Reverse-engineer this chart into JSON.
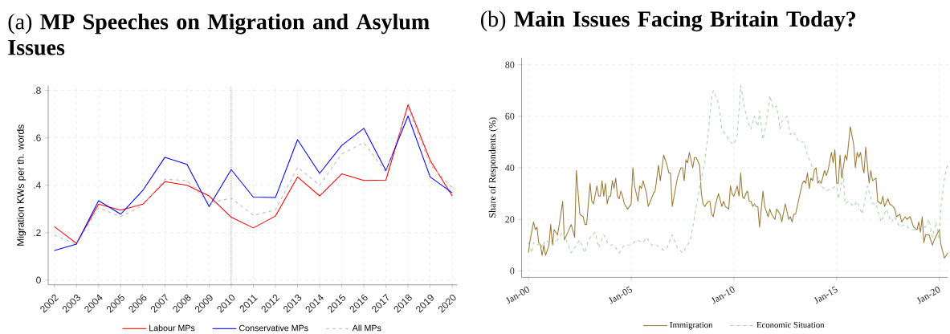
{
  "chart_data": [
    {
      "type": "line",
      "title": "(a) **MP Speeches on Migration and Asylum Issues**",
      "ylabel": "Migration KWs per th. words",
      "x": [
        2002,
        2003,
        2004,
        2005,
        2006,
        2007,
        2008,
        2009,
        2010,
        2011,
        2012,
        2013,
        2014,
        2015,
        2016,
        2017,
        2018,
        2019,
        2020
      ],
      "series": [
        {
          "name": "Labour MPs",
          "color": "#ff0000",
          "line_style": "solid",
          "values": [
            0.225,
            0.155,
            0.32,
            0.295,
            0.32,
            0.415,
            0.4,
            0.355,
            0.265,
            0.22,
            0.27,
            0.435,
            0.355,
            0.448,
            0.42,
            0.422,
            0.74,
            0.505,
            0.355
          ]
        },
        {
          "name": "Conservative MPs",
          "color": "#0000ff",
          "line_style": "solid",
          "values": [
            0.125,
            0.152,
            0.335,
            0.278,
            0.378,
            0.518,
            0.488,
            0.31,
            0.466,
            0.35,
            0.348,
            0.592,
            0.45,
            0.568,
            0.64,
            0.462,
            0.692,
            0.435,
            0.368
          ]
        },
        {
          "name": "All MPs",
          "color": "#bdbdbd",
          "line_style": "dashed",
          "values": [
            0.19,
            0.15,
            0.305,
            0.268,
            0.315,
            0.425,
            0.42,
            0.325,
            0.346,
            0.273,
            0.295,
            0.476,
            0.4,
            0.532,
            0.58,
            0.455,
            0.725,
            0.487,
            0.39
          ]
        }
      ],
      "xlim": [
        2001.72,
        2020.23
      ],
      "xticks": [
        2002,
        2003,
        2004,
        2005,
        2006,
        2007,
        2008,
        2009,
        2010,
        2011,
        2012,
        2013,
        2014,
        2015,
        2016,
        2017,
        2018,
        2019,
        2020
      ],
      "ylim": [
        -0.02,
        0.82
      ],
      "yticks": [
        {
          "value": 0,
          "label": "0"
        },
        {
          "value": 0.2,
          "label": ".2"
        },
        {
          "value": 0.4,
          "label": ".4"
        },
        {
          "value": 0.6,
          "label": ".6"
        },
        {
          "value": 0.8,
          "label": ".8"
        }
      ],
      "ref_lines": [
        {
          "axis": "x",
          "value": 2010,
          "color": "#555555",
          "line_style": "dotted"
        }
      ],
      "grid": true,
      "legend": "bottom"
    },
    {
      "type": "line",
      "title": "(b) **Main Issues Facing Britain Today?**",
      "ylabel": "Share of Respondents (%)",
      "series": [
        {
          "name": "Immigration",
          "color": "#9a7b3a",
          "line_style": "solid",
          "x": [
            "2000-01",
            "2000-02",
            "2000-04",
            "2000-05",
            "2000-06",
            "2000-07",
            "2000-08",
            "2000-09",
            "2000-10",
            "2000-11",
            "2001-01",
            "2001-02",
            "2001-03",
            "2001-04",
            "2001-06",
            "2001-07",
            "2001-09",
            "2001-10",
            "2002-02",
            "2002-04",
            "2002-05",
            "2002-07",
            "2002-09",
            "2002-10",
            "2002-11",
            "2003-01",
            "2003-02",
            "2003-03",
            "2003-05",
            "2003-06",
            "2003-07",
            "2003-08",
            "2003-09",
            "2003-10",
            "2003-11",
            "2003-12",
            "2004-01",
            "2004-02",
            "2004-03",
            "2004-04",
            "2004-05",
            "2004-06",
            "2004-07",
            "2004-08",
            "2004-09",
            "2004-11",
            "2005-01",
            "2005-02",
            "2005-03",
            "2005-05",
            "2005-06",
            "2005-07",
            "2005-08",
            "2005-10",
            "2005-11",
            "2006-02",
            "2006-03",
            "2006-05",
            "2006-06",
            "2006-08",
            "2006-10",
            "2006-11",
            "2006-12",
            "2007-01",
            "2007-04",
            "2007-06",
            "2007-07",
            "2007-08",
            "2007-09",
            "2007-10",
            "2007-11",
            "2008-01",
            "2008-02",
            "2008-03",
            "2008-05",
            "2008-06",
            "2008-07",
            "2008-08",
            "2008-10",
            "2008-11",
            "2008-12",
            "2009-01",
            "2009-02",
            "2009-04",
            "2009-06",
            "2009-07",
            "2009-08",
            "2009-10",
            "2009-11",
            "2009-12",
            "2010-01",
            "2010-03",
            "2010-04",
            "2010-05",
            "2010-06",
            "2010-07",
            "2010-08",
            "2010-09",
            "2010-10",
            "2010-11",
            "2010-12",
            "2011-01",
            "2011-02",
            "2011-03",
            "2011-04",
            "2011-06",
            "2011-07",
            "2011-09",
            "2011-10",
            "2011-11",
            "2012-01",
            "2012-02",
            "2012-04",
            "2012-05",
            "2012-07",
            "2012-09",
            "2012-10",
            "2012-11",
            "2012-12",
            "2013-01",
            "2013-03",
            "2013-05",
            "2013-06",
            "2013-07",
            "2013-08",
            "2013-09",
            "2013-10",
            "2013-11",
            "2013-12",
            "2014-01",
            "2014-02",
            "2014-03",
            "2014-04",
            "2014-06",
            "2014-07",
            "2014-08",
            "2014-10",
            "2014-11",
            "2014-12",
            "2015-01",
            "2015-02",
            "2015-03",
            "2015-04",
            "2015-06",
            "2015-07",
            "2015-09",
            "2015-11",
            "2015-12",
            "2016-01",
            "2016-02",
            "2016-03",
            "2016-04",
            "2016-05",
            "2016-06",
            "2016-08",
            "2016-09",
            "2016-10",
            "2016-12",
            "2017-01",
            "2017-03",
            "2017-04",
            "2017-05",
            "2017-07",
            "2017-08",
            "2017-10",
            "2017-11",
            "2017-12",
            "2018-02",
            "2018-03",
            "2018-05",
            "2018-06",
            "2018-08",
            "2018-10",
            "2018-12",
            "2019-01",
            "2019-02",
            "2019-03",
            "2019-04",
            "2019-05",
            "2019-07",
            "2019-09",
            "2019-10",
            "2020-01",
            "2020-02",
            "2020-04",
            "2020-06"
          ],
          "values": [
            7,
            12,
            19,
            16,
            17,
            11,
            10,
            6,
            10,
            6,
            10,
            18,
            10,
            16,
            14,
            18,
            27,
            12,
            18,
            13,
            39,
            22,
            21,
            18,
            18,
            34,
            27,
            26,
            33,
            29,
            29,
            35,
            29,
            34,
            26,
            29,
            29,
            35,
            32,
            36,
            29,
            28,
            31,
            29,
            26,
            24,
            26,
            40,
            33,
            27,
            33,
            32,
            35,
            30,
            25,
            30,
            31,
            41,
            35,
            45,
            41,
            38,
            38,
            25,
            36,
            40,
            40,
            35,
            43,
            42,
            46,
            40,
            44,
            44,
            41,
            30,
            26,
            25,
            27,
            27,
            22,
            21,
            25,
            30,
            25,
            27,
            25,
            24,
            33,
            30,
            29,
            33,
            29,
            38,
            29,
            28,
            30,
            31,
            27,
            27,
            25,
            26,
            25,
            25,
            17,
            31,
            25,
            21,
            24,
            22,
            20,
            24,
            22,
            19,
            26,
            20,
            21,
            19,
            22,
            22,
            28,
            34,
            35,
            34,
            38,
            32,
            36,
            35,
            39,
            40,
            34,
            35,
            34,
            39,
            37,
            39,
            46,
            42,
            47,
            34,
            34,
            45,
            36,
            45,
            43,
            56,
            49,
            40,
            46,
            44,
            46,
            41,
            38,
            48,
            34,
            39,
            35,
            36,
            27,
            26,
            29,
            25,
            28,
            26,
            25,
            24,
            21,
            22,
            19,
            21,
            20,
            21,
            17,
            16,
            19,
            15,
            21,
            11,
            14,
            14,
            10,
            12,
            16,
            10,
            5,
            7
          ]
        },
        {
          "name": "Economic Situation",
          "color": "#a8d5a8",
          "line_style": "dashed",
          "x": [
            "2000-01",
            "2000-03",
            "2000-04",
            "2000-06",
            "2000-08",
            "2000-09",
            "2000-11",
            "2001-01",
            "2001-03",
            "2001-06",
            "2001-09",
            "2001-11",
            "2002-02",
            "2002-04",
            "2002-07",
            "2002-10",
            "2002-12",
            "2003-04",
            "2003-06",
            "2003-09",
            "2003-12",
            "2004-03",
            "2004-06",
            "2004-09",
            "2005-01",
            "2005-04",
            "2005-08",
            "2005-10",
            "2006-01",
            "2006-04",
            "2006-08",
            "2006-10",
            "2007-01",
            "2007-04",
            "2007-07",
            "2007-10",
            "2007-12",
            "2008-03",
            "2008-06",
            "2008-08",
            "2008-10",
            "2008-12",
            "2009-01",
            "2009-04",
            "2009-06",
            "2009-08",
            "2009-11",
            "2010-01",
            "2010-03",
            "2010-05",
            "2010-07",
            "2010-09",
            "2010-11",
            "2011-01",
            "2011-03",
            "2011-04",
            "2011-06",
            "2011-08",
            "2011-10",
            "2011-12",
            "2012-02",
            "2012-04",
            "2012-05",
            "2012-08",
            "2012-10",
            "2012-12",
            "2013-03",
            "2013-06",
            "2013-08",
            "2013-11",
            "2014-01",
            "2014-04",
            "2014-07",
            "2014-10",
            "2015-01",
            "2015-02",
            "2015-05",
            "2015-06",
            "2015-08",
            "2015-11",
            "2016-01",
            "2016-04",
            "2016-07",
            "2016-10",
            "2016-12",
            "2017-03",
            "2017-06",
            "2017-09",
            "2017-11",
            "2018-02",
            "2018-05",
            "2018-08",
            "2018-12",
            "2019-02",
            "2019-05",
            "2019-07",
            "2019-09",
            "2019-11",
            "2020-01",
            "2020-02",
            "2020-04",
            "2020-06"
          ],
          "values": [
            11,
            7,
            11,
            10,
            11,
            9,
            12,
            11,
            10,
            12,
            15,
            12,
            7,
            9,
            12,
            7,
            12,
            15,
            9,
            14,
            10,
            10,
            7,
            10,
            10,
            12,
            11,
            13,
            10,
            10,
            8,
            9,
            14,
            9,
            7,
            10,
            13,
            25,
            36,
            42,
            54,
            67,
            70,
            65,
            55,
            53,
            50,
            49,
            53,
            72,
            64,
            58,
            55,
            60,
            56,
            62,
            51,
            58,
            68,
            63,
            64,
            55,
            58,
            60,
            53,
            54,
            50,
            50,
            45,
            40,
            38,
            33,
            31,
            32,
            33,
            28,
            37,
            26,
            27,
            25,
            27,
            22,
            33,
            26,
            26,
            19,
            24,
            19,
            21,
            17,
            18,
            16,
            16,
            17,
            17,
            20,
            13,
            19,
            12,
            25,
            36,
            42
          ]
        }
      ],
      "xlim": [
        "1999-09",
        "2020-06"
      ],
      "xticks": [
        {
          "value": "2000-01",
          "label": "Jan-00"
        },
        {
          "value": "2005-01",
          "label": "Jan-05"
        },
        {
          "value": "2010-01",
          "label": "Jan-10"
        },
        {
          "value": "2015-01",
          "label": "Jan-15"
        },
        {
          "value": "2020-01",
          "label": "Jan-20"
        }
      ],
      "ylim": [
        -2.5,
        82.7
      ],
      "yticks": [
        0,
        20,
        40,
        60,
        80
      ],
      "grid": true,
      "legend": "bottom"
    }
  ]
}
